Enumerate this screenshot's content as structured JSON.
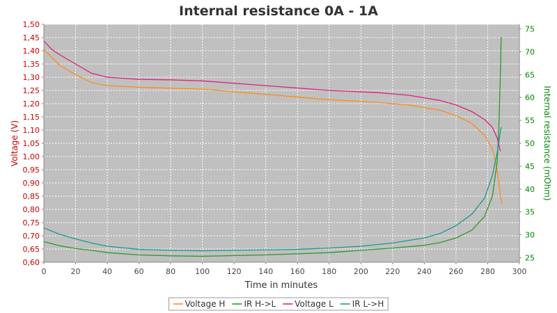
{
  "chart_data": {
    "type": "line",
    "title": "Internal resistance  0A - 1A",
    "xlabel": "Time in minutes",
    "ylabel_left": "Voltage (V)",
    "ylabel_right": "Internal resistance (mOhm)",
    "xlim": [
      0,
      300
    ],
    "ylim_left": [
      0.6,
      1.5
    ],
    "ylim_right": [
      24,
      76
    ],
    "x_ticks": [
      "0",
      "20",
      "40",
      "60",
      "80",
      "100",
      "120",
      "140",
      "160",
      "180",
      "200",
      "220",
      "240",
      "260",
      "280",
      "300"
    ],
    "y_left_ticks": [
      "0,60",
      "0,65",
      "0,70",
      "0,75",
      "0,80",
      "0,85",
      "0,90",
      "0,95",
      "1,00",
      "1,05",
      "1,10",
      "1,15",
      "1,20",
      "1,25",
      "1,30",
      "1,35",
      "1,40",
      "1,45",
      "1,50"
    ],
    "y_right_ticks": [
      "25",
      "30",
      "35",
      "40",
      "45",
      "50",
      "55",
      "60",
      "65",
      "70",
      "75"
    ],
    "grid": true,
    "legend_position": "bottom",
    "colors": {
      "left_axis": "#cc0000",
      "right_axis": "#008800",
      "plot_bg": "#c0c0c0",
      "grid": "#ffffff"
    },
    "series": [
      {
        "name": "Voltage H",
        "axis": "left",
        "color": "#ff8c1a",
        "points": [
          [
            0,
            1.405
          ],
          [
            5,
            1.375
          ],
          [
            10,
            1.345
          ],
          [
            20,
            1.31
          ],
          [
            30,
            1.28
          ],
          [
            40,
            1.268
          ],
          [
            60,
            1.262
          ],
          [
            100,
            1.255
          ],
          [
            140,
            1.235
          ],
          [
            180,
            1.215
          ],
          [
            210,
            1.205
          ],
          [
            230,
            1.195
          ],
          [
            250,
            1.175
          ],
          [
            260,
            1.155
          ],
          [
            270,
            1.125
          ],
          [
            278,
            1.08
          ],
          [
            283,
            1.03
          ],
          [
            286,
            0.95
          ],
          [
            288,
            0.85
          ],
          [
            289,
            0.82
          ]
        ]
      },
      {
        "name": "IR H->L",
        "axis": "right",
        "color": "#2a9a2a",
        "points": [
          [
            0,
            28.5
          ],
          [
            10,
            27.6
          ],
          [
            20,
            27
          ],
          [
            30,
            26.6
          ],
          [
            40,
            26.1
          ],
          [
            60,
            25.6
          ],
          [
            80,
            25.4
          ],
          [
            100,
            25.3
          ],
          [
            140,
            25.6
          ],
          [
            180,
            26.1
          ],
          [
            200,
            26.6
          ],
          [
            220,
            27.1
          ],
          [
            240,
            27.7
          ],
          [
            250,
            28.3
          ],
          [
            260,
            29.3
          ],
          [
            270,
            31
          ],
          [
            278,
            34
          ],
          [
            283,
            38.5
          ],
          [
            286,
            46
          ],
          [
            287,
            53
          ],
          [
            288,
            65
          ],
          [
            288.5,
            73.2
          ]
        ]
      },
      {
        "name": "Voltage L",
        "axis": "left",
        "color": "#e0207a",
        "points": [
          [
            0,
            1.437
          ],
          [
            5,
            1.405
          ],
          [
            10,
            1.385
          ],
          [
            20,
            1.35
          ],
          [
            30,
            1.315
          ],
          [
            40,
            1.3
          ],
          [
            60,
            1.292
          ],
          [
            80,
            1.29
          ],
          [
            100,
            1.286
          ],
          [
            140,
            1.268
          ],
          [
            180,
            1.25
          ],
          [
            210,
            1.242
          ],
          [
            230,
            1.232
          ],
          [
            250,
            1.212
          ],
          [
            260,
            1.195
          ],
          [
            270,
            1.17
          ],
          [
            278,
            1.14
          ],
          [
            283,
            1.11
          ],
          [
            286,
            1.07
          ],
          [
            288,
            1.02
          ]
        ]
      },
      {
        "name": "IR L->H",
        "axis": "right",
        "color": "#1a9a8a",
        "points": [
          [
            0,
            31.5
          ],
          [
            10,
            30.1
          ],
          [
            20,
            29.1
          ],
          [
            30,
            28.2
          ],
          [
            40,
            27.5
          ],
          [
            60,
            26.8
          ],
          [
            80,
            26.6
          ],
          [
            100,
            26.5
          ],
          [
            120,
            26.6
          ],
          [
            140,
            26.7
          ],
          [
            160,
            26.8
          ],
          [
            180,
            27.1
          ],
          [
            200,
            27.5
          ],
          [
            220,
            28.2
          ],
          [
            240,
            29.3
          ],
          [
            250,
            30.3
          ],
          [
            260,
            32
          ],
          [
            270,
            34.5
          ],
          [
            278,
            38
          ],
          [
            283,
            43
          ],
          [
            286,
            48
          ],
          [
            288,
            52.5
          ],
          [
            288.5,
            53.5
          ]
        ]
      }
    ]
  }
}
